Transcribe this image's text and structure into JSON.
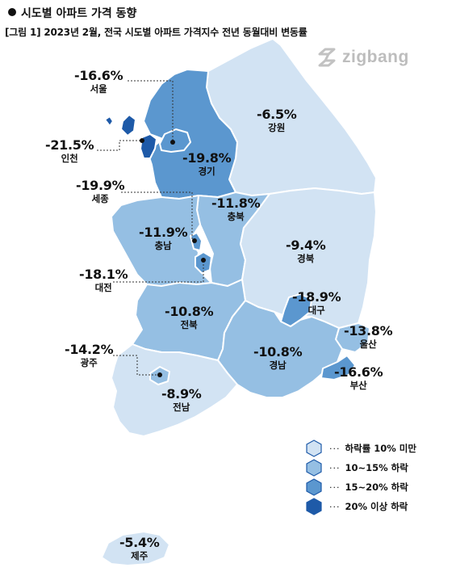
{
  "heading": "시도별 아파트 가격 동향",
  "caption": "[그림 1] 2023년 2월, 전국 시도별 아파트 가격지수 전년 동월대비 변동률",
  "logo_text": "zigbang",
  "regions": [
    {
      "id": "seoul",
      "name": "서울",
      "change": "-16.6%",
      "value": -16.6,
      "fill": "#5b97cf"
    },
    {
      "id": "incheon",
      "name": "인천",
      "change": "-21.5%",
      "value": -21.5,
      "fill": "#1e5aa8"
    },
    {
      "id": "gyeonggi",
      "name": "경기",
      "change": "-19.8%",
      "value": -19.8,
      "fill": "#5b97cf"
    },
    {
      "id": "gangwon",
      "name": "강원",
      "change": "-6.5%",
      "value": -6.5,
      "fill": "#d2e3f3"
    },
    {
      "id": "sejong",
      "name": "세종",
      "change": "-19.9%",
      "value": -19.9,
      "fill": "#5b97cf"
    },
    {
      "id": "chungbuk",
      "name": "충북",
      "change": "-11.8%",
      "value": -11.8,
      "fill": "#95bfe3"
    },
    {
      "id": "chungnam",
      "name": "충남",
      "change": "-11.9%",
      "value": -11.9,
      "fill": "#95bfe3"
    },
    {
      "id": "daejeon",
      "name": "대전",
      "change": "-18.1%",
      "value": -18.1,
      "fill": "#5b97cf"
    },
    {
      "id": "gyeongbuk",
      "name": "경북",
      "change": "-9.4%",
      "value": -9.4,
      "fill": "#d2e3f3"
    },
    {
      "id": "daegu",
      "name": "대구",
      "change": "-18.9%",
      "value": -18.9,
      "fill": "#5b97cf"
    },
    {
      "id": "jeonbuk",
      "name": "전북",
      "change": "-10.8%",
      "value": -10.8,
      "fill": "#95bfe3"
    },
    {
      "id": "ulsan",
      "name": "울산",
      "change": "-13.8%",
      "value": -13.8,
      "fill": "#95bfe3"
    },
    {
      "id": "gwangju",
      "name": "광주",
      "change": "-14.2%",
      "value": -14.2,
      "fill": "#95bfe3"
    },
    {
      "id": "gyeongnam",
      "name": "경남",
      "change": "-10.8%",
      "value": -10.8,
      "fill": "#95bfe3"
    },
    {
      "id": "busan",
      "name": "부산",
      "change": "-16.6%",
      "value": -16.6,
      "fill": "#5b97cf"
    },
    {
      "id": "jeonnam",
      "name": "전남",
      "change": "-8.9%",
      "value": -8.9,
      "fill": "#d2e3f3"
    },
    {
      "id": "jeju",
      "name": "제주",
      "change": "-5.4%",
      "value": -5.4,
      "fill": "#d2e3f3"
    }
  ],
  "legend": {
    "dots": "···",
    "items": [
      {
        "label": "하락률 10% 미만",
        "fill": "#d2e3f3"
      },
      {
        "label": "10~15% 하락",
        "fill": "#95bfe3"
      },
      {
        "label": "15~20% 하락",
        "fill": "#5b97cf"
      },
      {
        "label": "20% 이상 하락",
        "fill": "#1e5aa8"
      }
    ]
  }
}
